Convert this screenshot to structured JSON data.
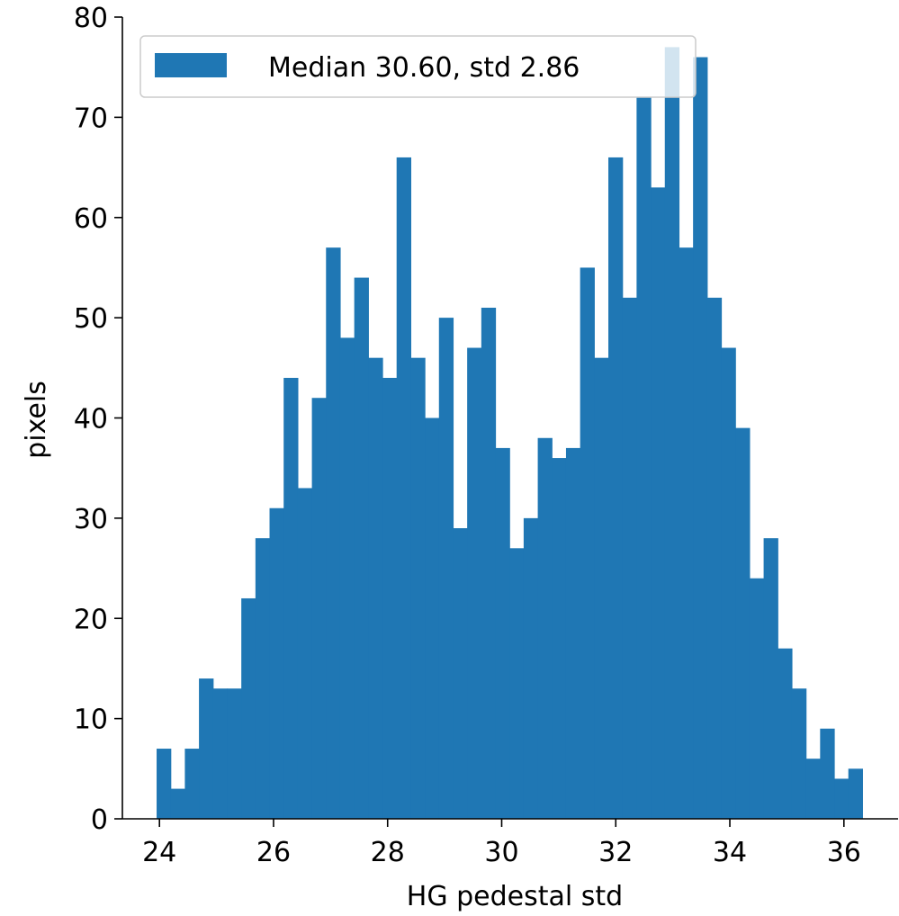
{
  "chart_data": {
    "type": "bar",
    "subtype": "histogram",
    "xlabel": "HG pedestal std",
    "ylabel": "pixels",
    "xlim": [
      23.35,
      36.95
    ],
    "ylim": [
      0,
      80
    ],
    "xticks": [
      24,
      26,
      28,
      30,
      32,
      34,
      36
    ],
    "yticks": [
      0,
      10,
      20,
      30,
      40,
      50,
      60,
      70,
      80
    ],
    "grid": false,
    "legend_position": "top-left",
    "series": [
      {
        "name": "Median 30.60, std 2.86",
        "color": "#1f77b4",
        "bin_start": 23.95,
        "bin_width": 0.2475,
        "counts": [
          7,
          3,
          7,
          14,
          13,
          13,
          22,
          28,
          31,
          44,
          33,
          42,
          57,
          48,
          54,
          46,
          44,
          66,
          46,
          40,
          50,
          29,
          47,
          51,
          37,
          27,
          30,
          38,
          36,
          37,
          55,
          46,
          66,
          52,
          72,
          63,
          77,
          57,
          76,
          52,
          47,
          39,
          24,
          28,
          17,
          13,
          6,
          9,
          4,
          5
        ]
      }
    ]
  }
}
